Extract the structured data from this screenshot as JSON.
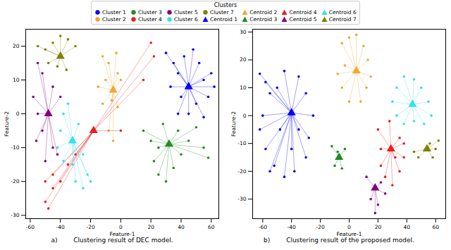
{
  "legend_title": "Clusters",
  "chart_data": [
    {
      "type": "scatter",
      "title": "a)",
      "subtitle": "Clustering result of DEC model.",
      "x_label": "Feature-1",
      "y_label": "Feature-2",
      "xlim": [
        -63,
        65
      ],
      "xticks": [
        -60,
        -40,
        -20,
        0,
        20,
        40,
        60
      ],
      "ylim": [
        -31,
        25
      ],
      "yticks": [
        -30,
        -20,
        -10,
        0,
        10,
        20
      ],
      "grid": false,
      "legend": "top",
      "series": [
        {
          "name": "Cluster 1",
          "color": "#0000ff",
          "marker": "circle",
          "x": [
            30,
            35,
            38,
            42,
            48,
            52,
            55,
            58,
            60,
            50,
            45,
            40,
            33,
            55,
            62,
            38
          ],
          "y": [
            18,
            15,
            12,
            17,
            19,
            15,
            10,
            5,
            12,
            3,
            0,
            5,
            8,
            -1,
            8,
            0
          ],
          "centroid": {
            "name": "Centroid 1",
            "color": "#0000ff",
            "marker": "triangle",
            "x": 45,
            "y": 8
          }
        },
        {
          "name": "Cluster 2",
          "color": "#f0a830",
          "marker": "circle",
          "x": [
            -12,
            -8,
            -3,
            -2,
            0,
            -10,
            -6,
            -12,
            -8,
            -5,
            -2,
            -15
          ],
          "y": [
            17,
            15,
            18,
            12,
            10,
            10,
            4,
            3,
            -5,
            -8,
            2,
            8
          ],
          "centroid": {
            "name": "Centroid 2",
            "color": "#f0a830",
            "marker": "triangle",
            "x": -5,
            "y": 7
          }
        },
        {
          "name": "Cluster 3",
          "color": "#228b22",
          "marker": "circle",
          "x": [
            15,
            20,
            22,
            25,
            30,
            35,
            40,
            45,
            50,
            55,
            58,
            28,
            38,
            25
          ],
          "y": [
            -5,
            -8,
            -14,
            -18,
            -20,
            -16,
            -12,
            -8,
            -4,
            -10,
            -13,
            -3,
            -5,
            -10
          ],
          "centroid": {
            "name": "Centroid 3",
            "color": "#228b22",
            "marker": "triangle",
            "x": 32,
            "y": -9
          }
        },
        {
          "name": "Cluster 4",
          "color": "#e8201f",
          "marker": "circle",
          "x": [
            -50,
            -48,
            -45,
            -40,
            -35,
            -45,
            -30,
            20,
            22,
            15,
            0,
            -50
          ],
          "y": [
            -26,
            -28,
            -22,
            -20,
            -15,
            -18,
            -12,
            21,
            17,
            10,
            -5,
            -20
          ],
          "centroid": {
            "name": "Centroid 4",
            "color": "#e8201f",
            "marker": "triangle",
            "x": -18,
            "y": -5
          }
        },
        {
          "name": "Cluster 5",
          "color": "#800080",
          "marker": "circle",
          "x": [
            -55,
            -52,
            -58,
            -55,
            -52,
            -45,
            -42,
            -40,
            -45,
            -56,
            -50
          ],
          "y": [
            15,
            12,
            5,
            0,
            -5,
            -10,
            -12,
            5,
            8,
            -8,
            -14
          ],
          "centroid": {
            "name": "Centroid 5",
            "color": "#800080",
            "marker": "triangle",
            "x": -48,
            "y": 0
          }
        },
        {
          "name": "Cluster 6",
          "color": "#33e0ee",
          "marker": "circle",
          "x": [
            -40,
            -38,
            -35,
            -28,
            -25,
            -22,
            -25,
            -32,
            -38,
            -42,
            -30,
            -20
          ],
          "y": [
            -5,
            0,
            3,
            -3,
            -12,
            -18,
            -22,
            -15,
            -14,
            -10,
            -20,
            -20
          ],
          "centroid": {
            "name": "Centroid 6",
            "color": "#33e0ee",
            "marker": "triangle",
            "x": -32,
            "y": -8
          }
        },
        {
          "name": "Cluster 7",
          "color": "#808000",
          "marker": "circle",
          "x": [
            -55,
            -50,
            -45,
            -40,
            -35,
            -30,
            -42,
            -36,
            -48
          ],
          "y": [
            20,
            19,
            21,
            23,
            22,
            20,
            14,
            13,
            15
          ],
          "centroid": {
            "name": "Centroid 7",
            "color": "#808000",
            "marker": "triangle",
            "x": -40,
            "y": 17
          }
        }
      ]
    },
    {
      "type": "scatter",
      "title": "b)",
      "subtitle": "Clustering result of the proposed model.",
      "x_label": "Feature-1",
      "y_label": "Feature-2",
      "xlim": [
        -67,
        67
      ],
      "xticks": [
        -60,
        -40,
        -20,
        0,
        20,
        40,
        60
      ],
      "ylim": [
        -37,
        31
      ],
      "yticks": [
        -30,
        -20,
        -10,
        0,
        10,
        20,
        30
      ],
      "grid": false,
      "legend": "top",
      "series": [
        {
          "name": "Cluster 1",
          "color": "#0000ff",
          "marker": "circle",
          "x": [
            -62,
            -58,
            -55,
            -60,
            -62,
            -58,
            -52,
            -45,
            -38,
            -30,
            -28,
            -25,
            -30,
            -35,
            -45,
            -50,
            -48,
            -35,
            -40,
            -55
          ],
          "y": [
            15,
            12,
            8,
            0,
            -5,
            -12,
            -18,
            -22,
            -20,
            -15,
            -8,
            0,
            8,
            14,
            16,
            10,
            -5,
            -5,
            -12,
            -20
          ],
          "centroid": {
            "name": "Centroid 1",
            "color": "#0000ff",
            "marker": "triangle",
            "x": -40,
            "y": 1
          }
        },
        {
          "name": "Cluster 2",
          "color": "#f0a830",
          "marker": "circle",
          "x": [
            -5,
            0,
            5,
            10,
            13,
            12,
            8,
            0,
            -5,
            -3,
            -8,
            15
          ],
          "y": [
            26,
            28,
            29,
            25,
            20,
            10,
            5,
            5,
            10,
            18,
            15,
            14
          ],
          "centroid": {
            "name": "Centroid 2",
            "color": "#f0a830",
            "marker": "triangle",
            "x": 5,
            "y": 16
          }
        },
        {
          "name": "Cluster 3",
          "color": "#228b22",
          "marker": "circle",
          "x": [
            -12,
            -10,
            -5,
            -3,
            -8
          ],
          "y": [
            -11,
            -18,
            -19,
            -12,
            -13
          ],
          "centroid": {
            "name": "Centroid 3",
            "color": "#228b22",
            "marker": "triangle",
            "x": -7,
            "y": -15
          }
        },
        {
          "name": "Cluster 4",
          "color": "#e8201f",
          "marker": "circle",
          "x": [
            20,
            22,
            25,
            30,
            35,
            38,
            35,
            28,
            22,
            32,
            38
          ],
          "y": [
            -5,
            -18,
            -22,
            -25,
            -20,
            -15,
            -8,
            -2,
            -12,
            -15,
            -10
          ],
          "centroid": {
            "name": "Centroid 4",
            "color": "#e8201f",
            "marker": "triangle",
            "x": 29,
            "y": -12
          }
        },
        {
          "name": "Cluster 5",
          "color": "#800080",
          "marker": "circle",
          "x": [
            12,
            15,
            20,
            25,
            22,
            18
          ],
          "y": [
            -22,
            -30,
            -32,
            -28,
            -24,
            -35
          ],
          "centroid": {
            "name": "Centroid 5",
            "color": "#800080",
            "marker": "triangle",
            "x": 18,
            "y": -26
          }
        },
        {
          "name": "Cluster 6",
          "color": "#33e0ee",
          "marker": "circle",
          "x": [
            30,
            33,
            38,
            45,
            50,
            55,
            57,
            52,
            45,
            38,
            33
          ],
          "y": [
            5,
            10,
            14,
            13,
            10,
            5,
            0,
            -3,
            -2,
            -3,
            0
          ],
          "centroid": {
            "name": "Centroid 6",
            "color": "#33e0ee",
            "marker": "triangle",
            "x": 44,
            "y": 4
          }
        },
        {
          "name": "Cluster 7",
          "color": "#808000",
          "marker": "circle",
          "x": [
            45,
            48,
            56,
            60,
            62,
            58
          ],
          "y": [
            -13,
            -15,
            -10,
            -12,
            -9,
            -15
          ],
          "centroid": {
            "name": "Centroid 7",
            "color": "#808000",
            "marker": "triangle",
            "x": 54,
            "y": -12
          }
        }
      ]
    }
  ]
}
